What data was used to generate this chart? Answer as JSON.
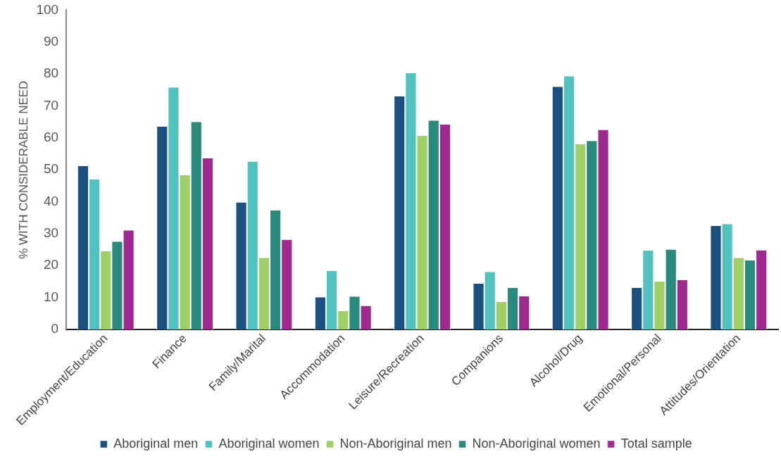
{
  "chart_data": {
    "type": "bar",
    "ylabel": "% WITH CONSIDERABLE NEED",
    "categories": [
      "Employment/Education",
      "Finance",
      "Family/Marital",
      "Accommodation",
      "Leisure/Recreation",
      "Companions",
      "Alcohol/Drug",
      "Emotional/Personal",
      "Attitudes/Orientation"
    ],
    "series": [
      {
        "name": "Aboriginal men",
        "color": "#1a5180",
        "values": [
          51.2,
          63.5,
          39.8,
          10.1,
          73,
          14.3,
          76,
          13,
          32.4
        ]
      },
      {
        "name": "Aboriginal women",
        "color": "#50c3c0",
        "values": [
          47,
          75.8,
          52.6,
          18.3,
          80.3,
          18,
          79.3,
          24.7,
          33
        ]
      },
      {
        "name": "Non-Aboriginal men",
        "color": "#a0cf67",
        "values": [
          24.5,
          48.3,
          22.4,
          5.8,
          60.6,
          8.6,
          58,
          15,
          22.4
        ]
      },
      {
        "name": "Non-Aboriginal women",
        "color": "#2a8a7e",
        "values": [
          27.5,
          65,
          37.3,
          10.3,
          65.4,
          13,
          59,
          25,
          21.6
        ]
      },
      {
        "name": "Total sample",
        "color": "#a0298f",
        "values": [
          31,
          53.6,
          28.1,
          7.4,
          64.2,
          10.4,
          62.5,
          15.5,
          24.8
        ]
      }
    ],
    "ylim": [
      0,
      100
    ],
    "yticks": [
      0,
      10,
      20,
      30,
      40,
      50,
      60,
      70,
      80,
      90,
      100
    ],
    "grid": false,
    "legend": "bottom"
  }
}
